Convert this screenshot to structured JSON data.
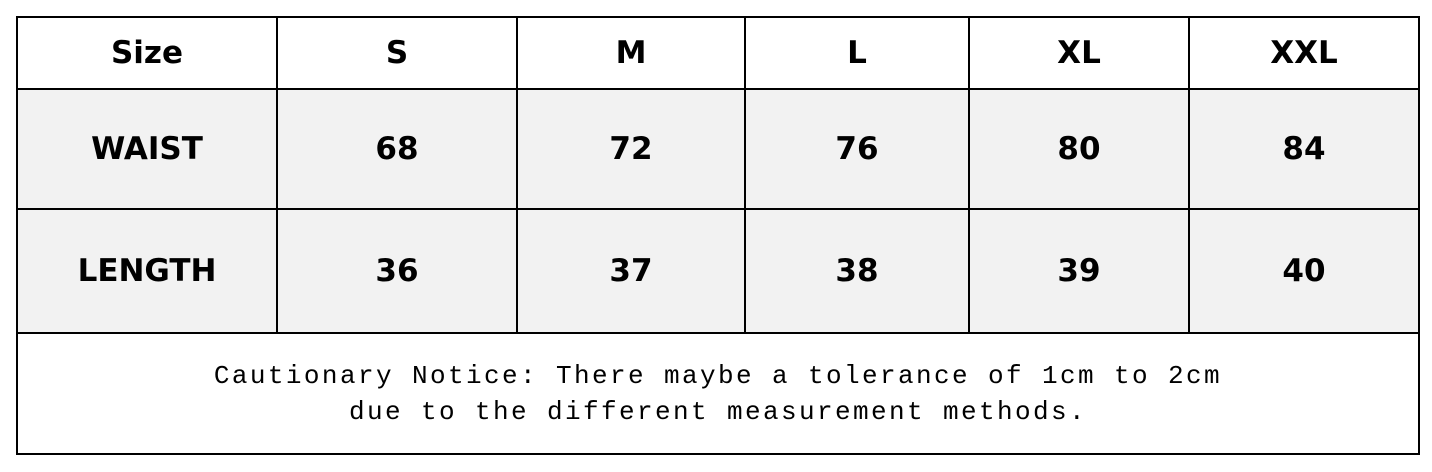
{
  "table": {
    "header": [
      "Size",
      "S",
      "M",
      "L",
      "XL",
      "XXL"
    ],
    "rows": [
      [
        "WAIST",
        68,
        72,
        76,
        80,
        84
      ],
      [
        "LENGTH",
        36,
        37,
        38,
        39,
        40
      ]
    ]
  },
  "notice": {
    "lines": [
      "Cautionary Notice: There maybe a tolerance of 1cm to 2cm",
      "due to the different measurement methods."
    ]
  }
}
